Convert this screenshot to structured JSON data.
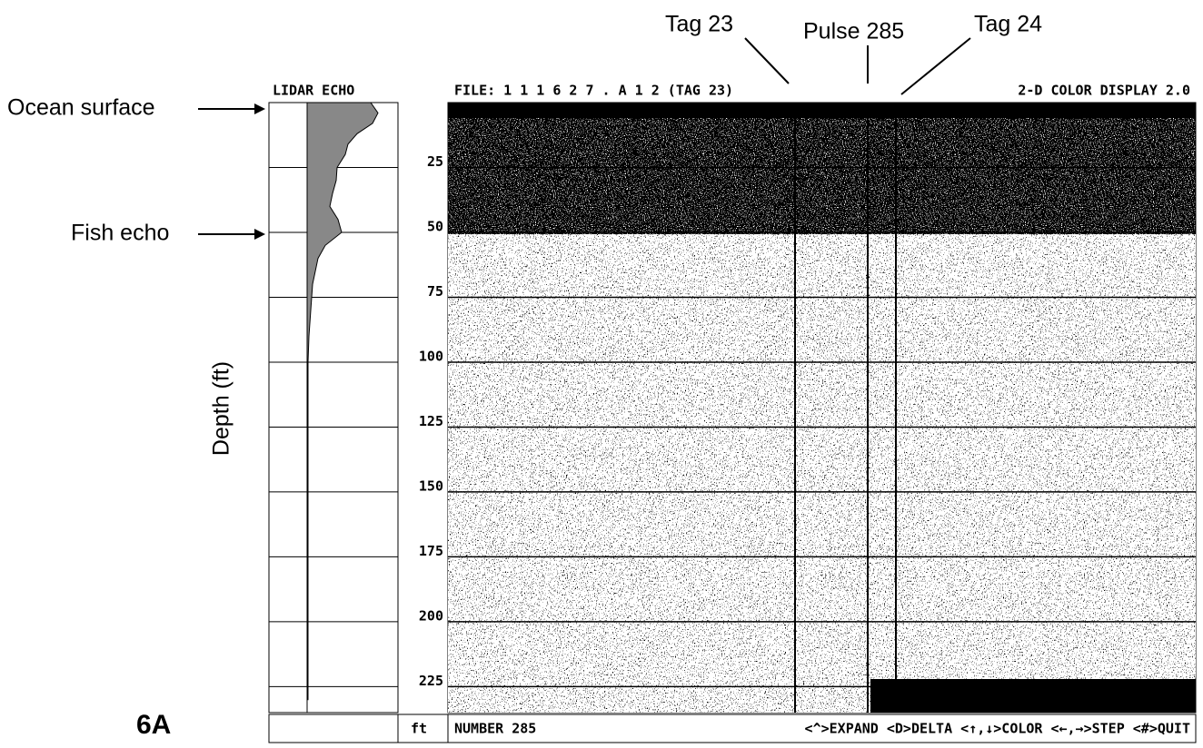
{
  "chart_data": {
    "type": "echogram",
    "file_label": "FILE: 1 1 1 6 2 7 . A 1 2  (TAG 23)",
    "display_label": "2-D COLOR DISPLAY 2.0",
    "echo_title": "LIDAR ECHO",
    "y_label": "Depth (ft)",
    "unit_label": "ft",
    "status": "NUMBER 285",
    "commands": "<^>EXPAND <D>DELTA <↑,↓>COLOR <←,→>STEP <#>QUIT",
    "figure_label": "6A",
    "annotations": [
      "Ocean surface",
      "Fish echo",
      "Tag 23",
      "Pulse 285",
      "Tag 24"
    ],
    "ylim": [
      0,
      235
    ],
    "yticks": [
      25,
      50,
      75,
      100,
      125,
      150,
      175,
      200,
      225
    ],
    "grid": true,
    "echo": {
      "depth": [
        0,
        4,
        8,
        12,
        16,
        20,
        25,
        30,
        35,
        40,
        45,
        50,
        55,
        60,
        70,
        80,
        90,
        100,
        150,
        230
      ],
      "intensity": [
        70,
        78,
        72,
        55,
        45,
        42,
        33,
        32,
        28,
        25,
        34,
        38,
        20,
        12,
        6,
        4,
        2,
        1,
        1,
        1
      ],
      "xlim": [
        0,
        80
      ],
      "color": "#888"
    }
  }
}
